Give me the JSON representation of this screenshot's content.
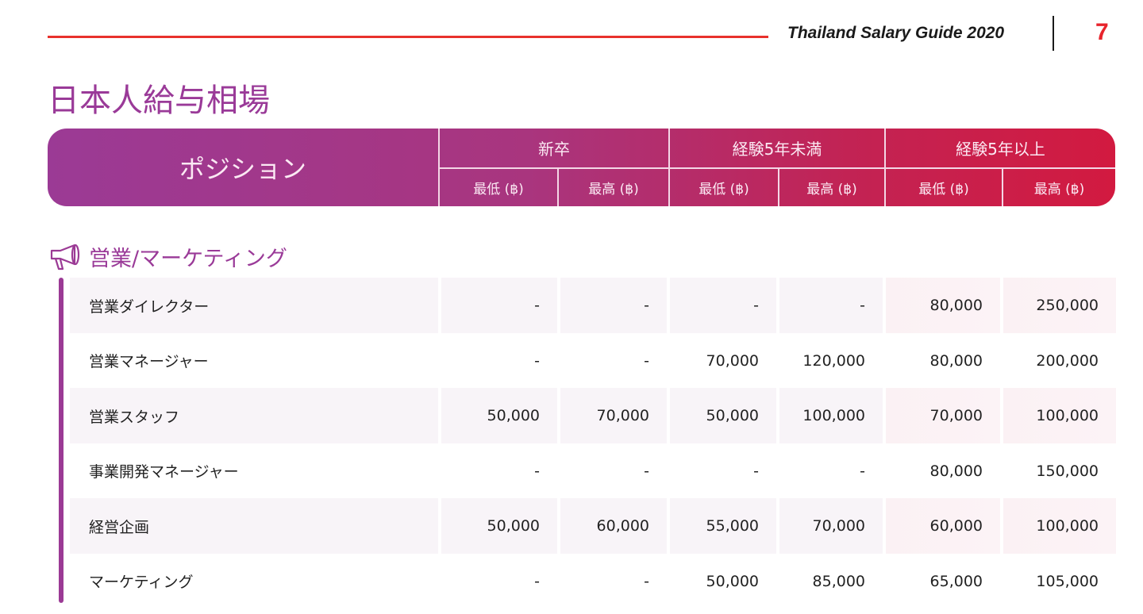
{
  "header": {
    "guide_title": "Thailand Salary Guide 2020",
    "page_number": "7"
  },
  "title": "日本人給与相場",
  "table": {
    "position_label": "ポジション",
    "groups": [
      "新卒",
      "経験5年未満",
      "経験5年以上"
    ],
    "subheaders": [
      "最低 (฿)",
      "最高 (฿)",
      "最低 (฿)",
      "最高 (฿)",
      "最低 (฿)",
      "最高 (฿)"
    ]
  },
  "section": {
    "icon": "megaphone-icon",
    "label": "営業/マーケティング"
  },
  "rows": [
    {
      "name": "営業ダイレクター",
      "values": [
        "-",
        "-",
        "-",
        "-",
        "80,000",
        "250,000"
      ]
    },
    {
      "name": "営業マネージャー",
      "values": [
        "-",
        "-",
        "70,000",
        "120,000",
        "80,000",
        "200,000"
      ]
    },
    {
      "name": "営業スタッフ",
      "values": [
        "50,000",
        "70,000",
        "50,000",
        "100,000",
        "70,000",
        "100,000"
      ]
    },
    {
      "name": "事業開発マネージャー",
      "values": [
        "-",
        "-",
        "-",
        "-",
        "80,000",
        "150,000"
      ]
    },
    {
      "name": "経営企画",
      "values": [
        "50,000",
        "60,000",
        "55,000",
        "70,000",
        "60,000",
        "100,000"
      ]
    },
    {
      "name": "マーケティング",
      "values": [
        "-",
        "-",
        "50,000",
        "85,000",
        "65,000",
        "105,000"
      ]
    }
  ],
  "colors": {
    "accent_purple": "#9b3a95",
    "accent_red": "#d21a40",
    "header_line": "#e8312c"
  }
}
